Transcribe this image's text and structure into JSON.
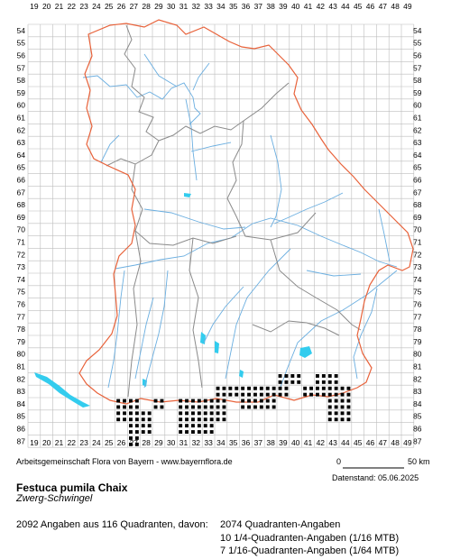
{
  "map": {
    "grid_columns": [
      "19",
      "20",
      "21",
      "22",
      "23",
      "24",
      "25",
      "26",
      "27",
      "28",
      "29",
      "30",
      "31",
      "32",
      "33",
      "34",
      "35",
      "36",
      "37",
      "38",
      "39",
      "40",
      "41",
      "42",
      "43",
      "44",
      "45",
      "46",
      "47",
      "48",
      "49"
    ],
    "grid_rows": [
      "54",
      "55",
      "56",
      "57",
      "58",
      "59",
      "60",
      "61",
      "62",
      "63",
      "64",
      "65",
      "66",
      "67",
      "68",
      "69",
      "70",
      "71",
      "72",
      "73",
      "74",
      "75",
      "76",
      "77",
      "78",
      "79",
      "80",
      "81",
      "82",
      "83",
      "84",
      "85",
      "86",
      "87"
    ],
    "colors": {
      "grid": "#bdbdbd",
      "border": "#e8623a",
      "districts": "#8a8a8a",
      "rivers": "#6aaee0",
      "lakes": "#33ccee",
      "occurrence": "#000000"
    }
  },
  "occurrences": [
    [
      39,
      82
    ],
    [
      40,
      82
    ],
    [
      42,
      82
    ],
    [
      43,
      82
    ],
    [
      34,
      83
    ],
    [
      35,
      83
    ],
    [
      36,
      83
    ],
    [
      37,
      83
    ],
    [
      38,
      83
    ],
    [
      39,
      83
    ],
    [
      41,
      83
    ],
    [
      42,
      83
    ],
    [
      43,
      83
    ],
    [
      44,
      83
    ],
    [
      26,
      84
    ],
    [
      27,
      84
    ],
    [
      29,
      84
    ],
    [
      31,
      84
    ],
    [
      32,
      84
    ],
    [
      33,
      84
    ],
    [
      34,
      84
    ],
    [
      36,
      84
    ],
    [
      37,
      84
    ],
    [
      38,
      84
    ],
    [
      43,
      84
    ],
    [
      44,
      84
    ],
    [
      26,
      85
    ],
    [
      27,
      85
    ],
    [
      28,
      85
    ],
    [
      31,
      85
    ],
    [
      32,
      85
    ],
    [
      33,
      85
    ],
    [
      34,
      85
    ],
    [
      43,
      85
    ],
    [
      44,
      85
    ],
    [
      27,
      86
    ],
    [
      28,
      86
    ],
    [
      31,
      86
    ],
    [
      32,
      86
    ],
    [
      33,
      86
    ],
    [
      27,
      87
    ]
  ],
  "credit": "Arbeitsgemeinschaft Flora von Bayern - www.bayernflora.de",
  "scale_start": "0",
  "scale_end": "50 km",
  "date": "Datenstand: 05.06.2025",
  "species_name": "Festuca pumila Chaix",
  "common_name": "Zwerg-Schwingel",
  "summary": "2092 Angaben aus 116 Quadranten, davon:",
  "breakdown": [
    "2074 Quadranten-Angaben",
    "10 1/4-Quadranten-Angaben (1/16 MTB)",
    "7 1/16-Quadranten-Angaben (1/64 MTB)"
  ]
}
